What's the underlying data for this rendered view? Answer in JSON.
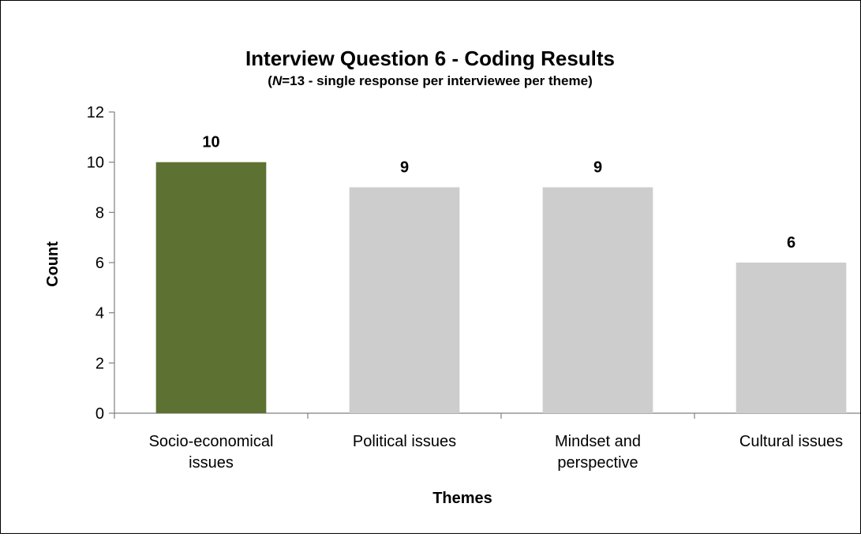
{
  "chart_data": {
    "type": "bar",
    "title": "Interview Question 6 - Coding Results",
    "subtitle": {
      "prefix": "(",
      "italic": "N",
      "rest": "=13 - single response per interviewee per theme)"
    },
    "xlabel": "Themes",
    "ylabel": "Count",
    "ylim": [
      0,
      12
    ],
    "yticks": [
      "0",
      "2",
      "4",
      "6",
      "8",
      "10",
      "12"
    ],
    "categories": [
      [
        "Socio-economical",
        "issues"
      ],
      [
        "Political issues"
      ],
      [
        "Mindset and",
        "perspective"
      ],
      [
        "Cultural issues"
      ]
    ],
    "values": [
      10,
      9,
      9,
      6
    ],
    "data_labels": [
      "10",
      "9",
      "9",
      "6"
    ],
    "colors": [
      "#5d7132",
      "#cdcdcd",
      "#cdcdcd",
      "#cdcdcd"
    ],
    "grid": false,
    "legend": "none"
  }
}
